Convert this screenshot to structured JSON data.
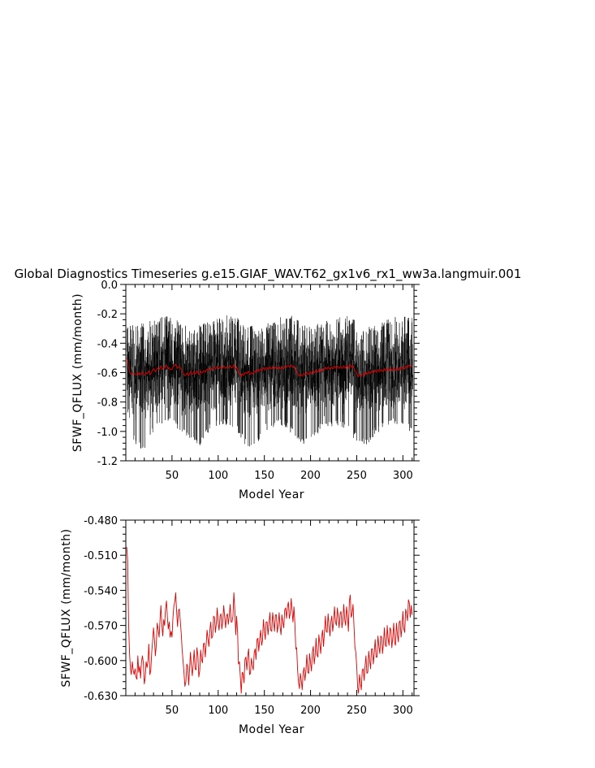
{
  "figure": {
    "title": "Global Diagnostics Timeseries g.e15.GIAF_WAV.T62_gx1v6_rx1_ww3a.langmuir.001"
  },
  "chart_data": [
    {
      "type": "line",
      "xlabel": "Model Year",
      "ylabel": "SFWF_QFLUX (mm/month)",
      "xlim": [
        0,
        312
      ],
      "ylim": [
        -1.2,
        0.0
      ],
      "xticks": [
        "50",
        "100",
        "150",
        "200",
        "250",
        "300"
      ],
      "yticks": [
        "0.0",
        "-0.2",
        "-0.4",
        "-0.6",
        "-0.8",
        "-1.0",
        "-1.2"
      ],
      "ytick_values": [
        0.0,
        -0.2,
        -0.4,
        -0.6,
        -0.8,
        -1.0,
        -1.2
      ],
      "grid": false,
      "series": [
        {
          "color": "#000000",
          "description": "monthly values, oscillating roughly between -1.15 and -0.2 with ~60-year envelope",
          "envelope_top": [
            [
              1,
              -0.28
            ],
            [
              10,
              -0.27
            ],
            [
              20,
              -0.26
            ],
            [
              30,
              -0.24
            ],
            [
              40,
              -0.22
            ],
            [
              50,
              -0.21
            ],
            [
              60,
              -0.25
            ],
            [
              70,
              -0.3
            ],
            [
              80,
              -0.27
            ],
            [
              90,
              -0.24
            ],
            [
              100,
              -0.22
            ],
            [
              110,
              -0.21
            ],
            [
              120,
              -0.22
            ],
            [
              130,
              -0.27
            ],
            [
              140,
              -0.28
            ],
            [
              150,
              -0.25
            ],
            [
              160,
              -0.23
            ],
            [
              170,
              -0.22
            ],
            [
              180,
              -0.2
            ],
            [
              190,
              -0.26
            ],
            [
              200,
              -0.29
            ],
            [
              210,
              -0.26
            ],
            [
              220,
              -0.23
            ],
            [
              230,
              -0.22
            ],
            [
              240,
              -0.21
            ],
            [
              250,
              -0.25
            ],
            [
              260,
              -0.3
            ],
            [
              270,
              -0.27
            ],
            [
              280,
              -0.24
            ],
            [
              290,
              -0.22
            ],
            [
              300,
              -0.21
            ],
            [
              310,
              -0.22
            ]
          ],
          "envelope_bottom": [
            [
              1,
              -0.85
            ],
            [
              10,
              -1.1
            ],
            [
              20,
              -1.15
            ],
            [
              30,
              -1.0
            ],
            [
              40,
              -0.98
            ],
            [
              50,
              -0.95
            ],
            [
              60,
              -1.02
            ],
            [
              70,
              -1.05
            ],
            [
              80,
              -1.1
            ],
            [
              90,
              -1.0
            ],
            [
              100,
              -0.97
            ],
            [
              110,
              -0.96
            ],
            [
              120,
              -1.0
            ],
            [
              130,
              -1.1
            ],
            [
              140,
              -1.12
            ],
            [
              150,
              -1.0
            ],
            [
              160,
              -0.97
            ],
            [
              170,
              -0.96
            ],
            [
              180,
              -1.02
            ],
            [
              190,
              -1.1
            ],
            [
              200,
              -1.08
            ],
            [
              210,
              -1.0
            ],
            [
              220,
              -0.97
            ],
            [
              230,
              -0.96
            ],
            [
              240,
              -1.0
            ],
            [
              250,
              -1.07
            ],
            [
              260,
              -1.1
            ],
            [
              270,
              -1.02
            ],
            [
              280,
              -0.98
            ],
            [
              290,
              -0.96
            ],
            [
              300,
              -0.99
            ],
            [
              310,
              -1.0
            ]
          ]
        },
        {
          "color": "#e00000",
          "description": "annual mean",
          "ref": "annual_mean"
        }
      ]
    },
    {
      "type": "line",
      "xlabel": "Model Year",
      "ylabel": "SFWF_QFLUX (mm/month)",
      "xlim": [
        0,
        312
      ],
      "ylim": [
        -0.63,
        -0.48
      ],
      "xticks": [
        "50",
        "100",
        "150",
        "200",
        "250",
        "300"
      ],
      "yticks": [
        "-0.480",
        "-0.510",
        "-0.540",
        "-0.570",
        "-0.600",
        "-0.630"
      ],
      "ytick_values": [
        -0.48,
        -0.51,
        -0.54,
        -0.57,
        -0.6,
        -0.63
      ],
      "grid": false,
      "series": [
        {
          "color": "#e00000",
          "description": "annual mean",
          "ref": "annual_mean"
        }
      ]
    }
  ],
  "annual_mean": [
    [
      1,
      -0.503
    ],
    [
      2,
      -0.515
    ],
    [
      3,
      -0.568
    ],
    [
      4,
      -0.594
    ],
    [
      5,
      -0.607
    ],
    [
      6,
      -0.612
    ],
    [
      7,
      -0.601
    ],
    [
      8,
      -0.608
    ],
    [
      9,
      -0.612
    ],
    [
      10,
      -0.607
    ],
    [
      11,
      -0.614
    ],
    [
      12,
      -0.616
    ],
    [
      13,
      -0.596
    ],
    [
      14,
      -0.61
    ],
    [
      15,
      -0.605
    ],
    [
      16,
      -0.615
    ],
    [
      17,
      -0.601
    ],
    [
      18,
      -0.596
    ],
    [
      19,
      -0.602
    ],
    [
      20,
      -0.62
    ],
    [
      21,
      -0.615
    ],
    [
      22,
      -0.601
    ],
    [
      23,
      -0.606
    ],
    [
      24,
      -0.6
    ],
    [
      25,
      -0.586
    ],
    [
      26,
      -0.612
    ],
    [
      27,
      -0.609
    ],
    [
      28,
      -0.593
    ],
    [
      29,
      -0.584
    ],
    [
      30,
      -0.572
    ],
    [
      31,
      -0.582
    ],
    [
      32,
      -0.596
    ],
    [
      33,
      -0.587
    ],
    [
      34,
      -0.568
    ],
    [
      35,
      -0.573
    ],
    [
      36,
      -0.58
    ],
    [
      37,
      -0.566
    ],
    [
      38,
      -0.553
    ],
    [
      39,
      -0.569
    ],
    [
      40,
      -0.579
    ],
    [
      41,
      -0.565
    ],
    [
      42,
      -0.57
    ],
    [
      43,
      -0.556
    ],
    [
      44,
      -0.549
    ],
    [
      45,
      -0.563
    ],
    [
      46,
      -0.573
    ],
    [
      47,
      -0.567
    ],
    [
      48,
      -0.58
    ],
    [
      49,
      -0.575
    ],
    [
      50,
      -0.58
    ],
    [
      51,
      -0.564
    ],
    [
      52,
      -0.553
    ],
    [
      53,
      -0.55
    ],
    [
      54,
      -0.542
    ],
    [
      55,
      -0.558
    ],
    [
      56,
      -0.571
    ],
    [
      57,
      -0.557
    ],
    [
      58,
      -0.556
    ],
    [
      59,
      -0.566
    ],
    [
      60,
      -0.577
    ],
    [
      61,
      -0.591
    ],
    [
      62,
      -0.6
    ],
    [
      63,
      -0.611
    ],
    [
      64,
      -0.622
    ],
    [
      65,
      -0.618
    ],
    [
      66,
      -0.603
    ],
    [
      67,
      -0.605
    ],
    [
      68,
      -0.621
    ],
    [
      69,
      -0.608
    ],
    [
      70,
      -0.593
    ],
    [
      71,
      -0.605
    ],
    [
      72,
      -0.613
    ],
    [
      73,
      -0.602
    ],
    [
      74,
      -0.591
    ],
    [
      75,
      -0.607
    ],
    [
      76,
      -0.608
    ],
    [
      77,
      -0.589
    ],
    [
      78,
      -0.596
    ],
    [
      79,
      -0.614
    ],
    [
      80,
      -0.609
    ],
    [
      81,
      -0.591
    ],
    [
      82,
      -0.599
    ],
    [
      83,
      -0.602
    ],
    [
      84,
      -0.586
    ],
    [
      85,
      -0.585
    ],
    [
      86,
      -0.597
    ],
    [
      87,
      -0.586
    ],
    [
      88,
      -0.574
    ],
    [
      89,
      -0.582
    ],
    [
      90,
      -0.588
    ],
    [
      91,
      -0.574
    ],
    [
      92,
      -0.567
    ],
    [
      93,
      -0.581
    ],
    [
      94,
      -0.579
    ],
    [
      95,
      -0.562
    ],
    [
      96,
      -0.563
    ],
    [
      97,
      -0.576
    ],
    [
      98,
      -0.568
    ],
    [
      99,
      -0.555
    ],
    [
      100,
      -0.568
    ],
    [
      101,
      -0.574
    ],
    [
      102,
      -0.562
    ],
    [
      103,
      -0.56
    ],
    [
      104,
      -0.573
    ],
    [
      105,
      -0.566
    ],
    [
      106,
      -0.553
    ],
    [
      107,
      -0.562
    ],
    [
      108,
      -0.572
    ],
    [
      109,
      -0.562
    ],
    [
      110,
      -0.56
    ],
    [
      111,
      -0.569
    ],
    [
      112,
      -0.562
    ],
    [
      113,
      -0.552
    ],
    [
      114,
      -0.567
    ],
    [
      115,
      -0.567
    ],
    [
      116,
      -0.562
    ],
    [
      117,
      -0.542
    ],
    [
      118,
      -0.557
    ],
    [
      119,
      -0.578
    ],
    [
      120,
      -0.562
    ],
    [
      121,
      -0.576
    ],
    [
      122,
      -0.603
    ],
    [
      123,
      -0.601
    ],
    [
      124,
      -0.614
    ],
    [
      125,
      -0.628
    ],
    [
      126,
      -0.61
    ],
    [
      127,
      -0.611
    ],
    [
      128,
      -0.619
    ],
    [
      129,
      -0.599
    ],
    [
      130,
      -0.597
    ],
    [
      131,
      -0.608
    ],
    [
      132,
      -0.596
    ],
    [
      133,
      -0.59
    ],
    [
      134,
      -0.612
    ],
    [
      135,
      -0.611
    ],
    [
      136,
      -0.598
    ],
    [
      137,
      -0.604
    ],
    [
      138,
      -0.608
    ],
    [
      139,
      -0.593
    ],
    [
      140,
      -0.59
    ],
    [
      141,
      -0.599
    ],
    [
      142,
      -0.582
    ],
    [
      143,
      -0.581
    ],
    [
      144,
      -0.592
    ],
    [
      145,
      -0.581
    ],
    [
      146,
      -0.574
    ],
    [
      147,
      -0.587
    ],
    [
      148,
      -0.583
    ],
    [
      149,
      -0.565
    ],
    [
      150,
      -0.575
    ],
    [
      151,
      -0.582
    ],
    [
      152,
      -0.567
    ],
    [
      153,
      -0.567
    ],
    [
      154,
      -0.578
    ],
    [
      155,
      -0.568
    ],
    [
      156,
      -0.559
    ],
    [
      157,
      -0.574
    ],
    [
      158,
      -0.575
    ],
    [
      159,
      -0.559
    ],
    [
      160,
      -0.567
    ],
    [
      161,
      -0.575
    ],
    [
      162,
      -0.561
    ],
    [
      163,
      -0.561
    ],
    [
      164,
      -0.576
    ],
    [
      165,
      -0.57
    ],
    [
      166,
      -0.559
    ],
    [
      167,
      -0.571
    ],
    [
      168,
      -0.578
    ],
    [
      169,
      -0.561
    ],
    [
      170,
      -0.567
    ],
    [
      171,
      -0.572
    ],
    [
      172,
      -0.557
    ],
    [
      173,
      -0.555
    ],
    [
      174,
      -0.564
    ],
    [
      175,
      -0.554
    ],
    [
      176,
      -0.55
    ],
    [
      177,
      -0.564
    ],
    [
      178,
      -0.56
    ],
    [
      179,
      -0.547
    ],
    [
      180,
      -0.557
    ],
    [
      181,
      -0.567
    ],
    [
      182,
      -0.554
    ],
    [
      183,
      -0.567
    ],
    [
      184,
      -0.59
    ],
    [
      185,
      -0.589
    ],
    [
      186,
      -0.608
    ],
    [
      187,
      -0.619
    ],
    [
      188,
      -0.624
    ],
    [
      189,
      -0.611
    ],
    [
      190,
      -0.617
    ],
    [
      191,
      -0.625
    ],
    [
      192,
      -0.61
    ],
    [
      193,
      -0.606
    ],
    [
      194,
      -0.617
    ],
    [
      195,
      -0.608
    ],
    [
      196,
      -0.595
    ],
    [
      197,
      -0.61
    ],
    [
      198,
      -0.611
    ],
    [
      199,
      -0.594
    ],
    [
      200,
      -0.602
    ],
    [
      201,
      -0.609
    ],
    [
      202,
      -0.593
    ],
    [
      203,
      -0.588
    ],
    [
      204,
      -0.603
    ],
    [
      205,
      -0.595
    ],
    [
      206,
      -0.581
    ],
    [
      207,
      -0.595
    ],
    [
      208,
      -0.597
    ],
    [
      209,
      -0.578
    ],
    [
      210,
      -0.585
    ],
    [
      211,
      -0.594
    ],
    [
      212,
      -0.58
    ],
    [
      213,
      -0.574
    ],
    [
      214,
      -0.588
    ],
    [
      215,
      -0.577
    ],
    [
      216,
      -0.562
    ],
    [
      217,
      -0.575
    ],
    [
      218,
      -0.576
    ],
    [
      219,
      -0.56
    ],
    [
      220,
      -0.57
    ],
    [
      221,
      -0.579
    ],
    [
      222,
      -0.567
    ],
    [
      223,
      -0.562
    ],
    [
      224,
      -0.575
    ],
    [
      225,
      -0.567
    ],
    [
      226,
      -0.554
    ],
    [
      227,
      -0.567
    ],
    [
      228,
      -0.57
    ],
    [
      229,
      -0.555
    ],
    [
      230,
      -0.563
    ],
    [
      231,
      -0.572
    ],
    [
      232,
      -0.56
    ],
    [
      233,
      -0.558
    ],
    [
      234,
      -0.572
    ],
    [
      235,
      -0.566
    ],
    [
      236,
      -0.552
    ],
    [
      237,
      -0.565
    ],
    [
      238,
      -0.57
    ],
    [
      239,
      -0.554
    ],
    [
      240,
      -0.562
    ],
    [
      241,
      -0.575
    ],
    [
      242,
      -0.549
    ],
    [
      243,
      -0.544
    ],
    [
      244,
      -0.563
    ],
    [
      245,
      -0.56
    ],
    [
      246,
      -0.552
    ],
    [
      247,
      -0.569
    ],
    [
      248,
      -0.588
    ],
    [
      249,
      -0.593
    ],
    [
      250,
      -0.605
    ],
    [
      251,
      -0.623
    ],
    [
      252,
      -0.628
    ],
    [
      253,
      -0.612
    ],
    [
      254,
      -0.619
    ],
    [
      255,
      -0.625
    ],
    [
      256,
      -0.608
    ],
    [
      257,
      -0.607
    ],
    [
      258,
      -0.617
    ],
    [
      259,
      -0.605
    ],
    [
      260,
      -0.596
    ],
    [
      261,
      -0.611
    ],
    [
      262,
      -0.61
    ],
    [
      263,
      -0.592
    ],
    [
      264,
      -0.6
    ],
    [
      265,
      -0.607
    ],
    [
      266,
      -0.59
    ],
    [
      267,
      -0.59
    ],
    [
      268,
      -0.603
    ],
    [
      269,
      -0.593
    ],
    [
      270,
      -0.582
    ],
    [
      271,
      -0.597
    ],
    [
      272,
      -0.597
    ],
    [
      273,
      -0.579
    ],
    [
      274,
      -0.588
    ],
    [
      275,
      -0.594
    ],
    [
      276,
      -0.579
    ],
    [
      277,
      -0.58
    ],
    [
      278,
      -0.594
    ],
    [
      279,
      -0.584
    ],
    [
      280,
      -0.572
    ],
    [
      281,
      -0.587
    ],
    [
      282,
      -0.588
    ],
    [
      283,
      -0.57
    ],
    [
      284,
      -0.581
    ],
    [
      285,
      -0.587
    ],
    [
      286,
      -0.572
    ],
    [
      287,
      -0.574
    ],
    [
      288,
      -0.589
    ],
    [
      289,
      -0.581
    ],
    [
      290,
      -0.568
    ],
    [
      291,
      -0.584
    ],
    [
      292,
      -0.587
    ],
    [
      293,
      -0.568
    ],
    [
      294,
      -0.577
    ],
    [
      295,
      -0.584
    ],
    [
      296,
      -0.567
    ],
    [
      297,
      -0.566
    ],
    [
      298,
      -0.58
    ],
    [
      299,
      -0.572
    ],
    [
      300,
      -0.558
    ],
    [
      301,
      -0.573
    ],
    [
      302,
      -0.576
    ],
    [
      303,
      -0.556
    ],
    [
      304,
      -0.56
    ],
    [
      305,
      -0.566
    ],
    [
      306,
      -0.548
    ],
    [
      307,
      -0.551
    ],
    [
      308,
      -0.563
    ],
    [
      309,
      -0.553
    ],
    [
      310,
      -0.561
    ]
  ]
}
